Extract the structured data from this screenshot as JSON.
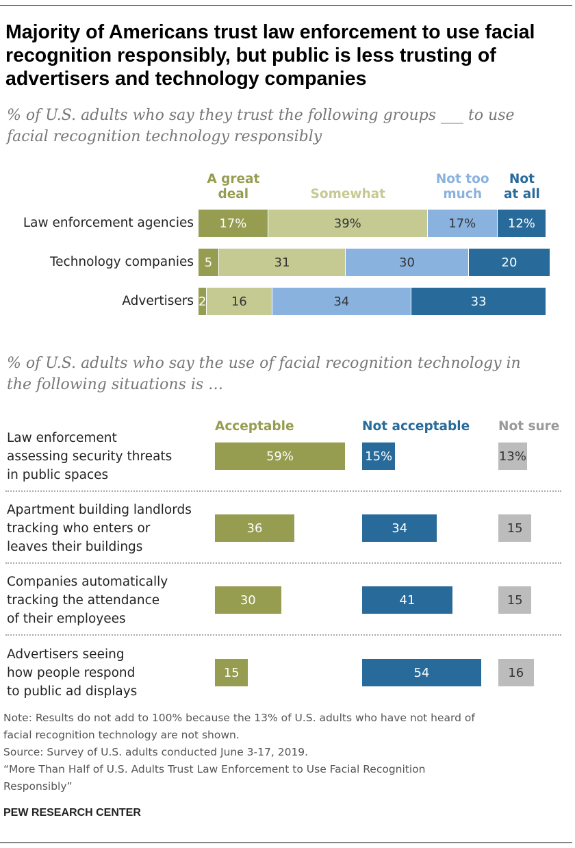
{
  "title": "Majority of Americans trust law enforcement to use facial recognition responsibly, but public is less trusting of advertisers and technology companies",
  "chart_data": [
    {
      "type": "bar",
      "orientation": "horizontal-stacked",
      "subtitle": "% of U.S. adults who say they trust the following groups ___ to use facial recognition technology responsibly",
      "categories": [
        "Law enforcement agencies",
        "Technology companies",
        "Advertisers"
      ],
      "series": [
        {
          "name": "A great deal",
          "color": "#969c50",
          "values": [
            17,
            5,
            2
          ],
          "labels": [
            "17%",
            "5",
            "2"
          ]
        },
        {
          "name": "Somewhat",
          "color": "#c4ca91",
          "values": [
            39,
            31,
            16
          ],
          "labels": [
            "39%",
            "31",
            "16"
          ]
        },
        {
          "name": "Not too much",
          "color": "#8ab2de",
          "values": [
            17,
            30,
            34
          ],
          "labels": [
            "17%",
            "30",
            "34"
          ]
        },
        {
          "name": "Not at all",
          "color": "#286a9a",
          "values": [
            12,
            20,
            33
          ],
          "labels": [
            "12%",
            "20",
            "33"
          ]
        }
      ],
      "legend_labels": [
        [
          "A great",
          "deal"
        ],
        [
          "Somewhat"
        ],
        [
          "Not too",
          "much"
        ],
        [
          "Not",
          "at all"
        ]
      ]
    },
    {
      "type": "bar",
      "orientation": "horizontal-grouped",
      "subtitle": "% of U.S. adults who say the use of facial recognition technology in the following situations is …",
      "categories": [
        [
          "Law enforcement",
          "assessing security threats",
          "in public spaces"
        ],
        [
          "Apartment building landlords",
          "tracking who enters or",
          "leaves their buildings"
        ],
        [
          "Companies automatically",
          "tracking the attendance",
          "of their employees"
        ],
        [
          "Advertisers seeing",
          "how people respond",
          "to public ad displays"
        ]
      ],
      "series": [
        {
          "name": "Acceptable",
          "color": "#969c50",
          "values": [
            59,
            36,
            30,
            15
          ],
          "labels": [
            "59%",
            "36",
            "30",
            "15"
          ]
        },
        {
          "name": "Not acceptable",
          "color": "#286a9a",
          "values": [
            15,
            34,
            41,
            54
          ],
          "labels": [
            "15%",
            "34",
            "41",
            "54"
          ]
        },
        {
          "name": "Not sure",
          "color": "#bcbcbc",
          "values": [
            13,
            15,
            15,
            16
          ],
          "labels": [
            "13%",
            "15",
            "15",
            "16"
          ]
        }
      ]
    }
  ],
  "notes": [
    "Note: Results do not add to 100% because the 13% of U.S. adults who have not heard of",
    "facial recognition technology are not shown.",
    "Source: Survey of U.S. adults conducted June 3-17, 2019.",
    "“More Than Half of U.S. Adults Trust Law Enforcement to Use Facial Recognition",
    "Responsibly”"
  ],
  "brand": "PEW RESEARCH CENTER"
}
